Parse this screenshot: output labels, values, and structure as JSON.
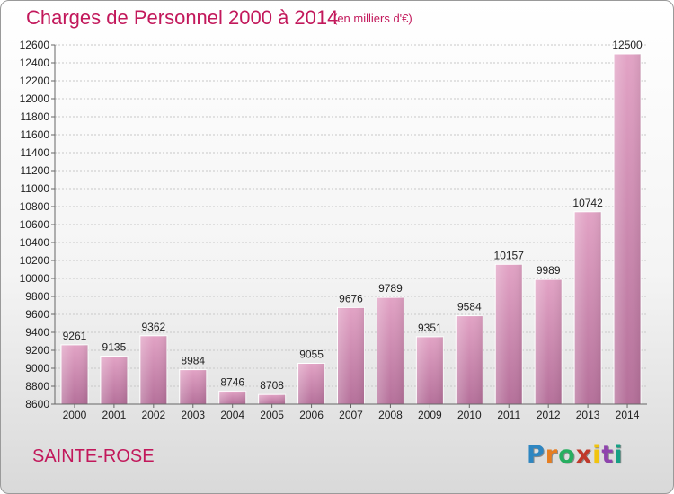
{
  "title": "Charges de Personnel 2000 à 2014",
  "subtitle": "(en milliers d'€)",
  "commune": "SAINTE-ROSE",
  "logo": {
    "letters": [
      "P",
      "r",
      "o",
      "x",
      "i",
      "t",
      "i"
    ],
    "colors": [
      "#2e86c1",
      "#e67e22",
      "#27ae60",
      "#c0392b",
      "#f1c40f",
      "#8e44ad",
      "#16a085"
    ]
  },
  "chart_data": {
    "type": "bar",
    "categories": [
      "2000",
      "2001",
      "2002",
      "2003",
      "2004",
      "2005",
      "2006",
      "2007",
      "2008",
      "2009",
      "2010",
      "2011",
      "2012",
      "2013",
      "2014"
    ],
    "values": [
      9261,
      9135,
      9362,
      8984,
      8746,
      8708,
      9055,
      9676,
      9789,
      9351,
      9584,
      10157,
      9989,
      10742,
      12500
    ],
    "data_labels": [
      "9261",
      "9135",
      "9362",
      "8984",
      "8746",
      "8708",
      "9055",
      "9676",
      "9789",
      "9351",
      "9584",
      "10157",
      "9989",
      "10742",
      "12500"
    ],
    "ylim": [
      8600,
      12600
    ],
    "yticks": [
      "8600",
      "8800",
      "9000",
      "9200",
      "9400",
      "9600",
      "9800",
      "10000",
      "10200",
      "10400",
      "10600",
      "10800",
      "11000",
      "11200",
      "11400",
      "11600",
      "11800",
      "12000",
      "12200",
      "12400",
      "12600"
    ],
    "grid": true,
    "bar_color": "#d988b2"
  }
}
